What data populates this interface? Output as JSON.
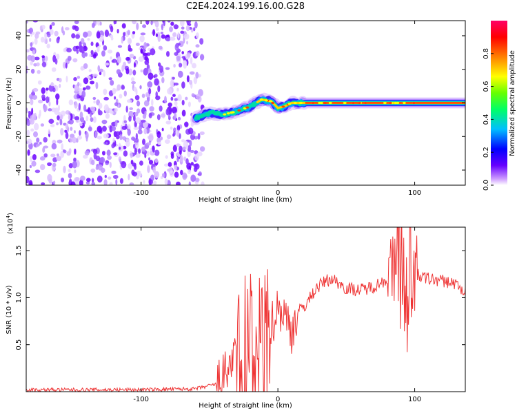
{
  "title": "C2E4.2024.199.16.00.G28",
  "chart_data": [
    {
      "type": "heatmap",
      "xlabel": "Height of straight line (km)",
      "ylabel": "Frequency (Hz)",
      "xlim": [
        -184,
        137
      ],
      "ylim": [
        -49,
        49
      ],
      "x_ticks": [
        "-100",
        "0",
        "100"
      ],
      "y_ticks": [
        "-40",
        "-20",
        "0",
        "20",
        "40"
      ],
      "colorbar": {
        "label": "Normalized spectral amplitude",
        "range": [
          0,
          1
        ],
        "ticks": [
          "0.0",
          "0.2",
          "0.4",
          "0.6",
          "0.8"
        ],
        "colors": [
          "#ffffff",
          "#cc99ff",
          "#6600ff",
          "#0000ff",
          "#00bfff",
          "#00ff66",
          "#66ff00",
          "#ffff00",
          "#ff8000",
          "#ff0000",
          "#ff0066"
        ]
      },
      "signal_trace": {
        "x": [
          -60,
          -50,
          -40,
          -30,
          -20,
          -12,
          -5,
          0,
          5,
          10,
          20,
          40,
          60,
          80,
          100,
          137
        ],
        "y": [
          -9,
          -6,
          -7,
          -5,
          -2,
          2,
          1,
          -3,
          -2,
          0,
          0,
          0,
          0,
          0,
          0,
          0
        ],
        "peak_amplitude_region": [
          20,
          137
        ]
      },
      "noise_region": [
        -184,
        -55
      ]
    },
    {
      "type": "line",
      "xlabel": "Height of straight line (km)",
      "ylabel": "SNR (10 * v/v)",
      "multiplier_label": "(x10",
      "multiplier_exp": "4",
      "multiplier_close": ")",
      "xlim": [
        -184,
        137
      ],
      "ylim": [
        0,
        1.75
      ],
      "x_ticks": [
        "-100",
        "0",
        "100"
      ],
      "y_ticks": [
        "0.5",
        "1.0",
        "1.5"
      ],
      "line_color": "#ee3333",
      "series": [
        {
          "x": [
            -184,
            -100,
            -60,
            -45,
            -38,
            -33,
            -28,
            -22,
            -16,
            -10,
            -5,
            0,
            5,
            10,
            15,
            20,
            28,
            35,
            40,
            45,
            50,
            60,
            70,
            80,
            85,
            90,
            95,
            100,
            105,
            110,
            120,
            130,
            137
          ],
          "y": [
            0.02,
            0.02,
            0.03,
            0.08,
            0.2,
            0.35,
            0.28,
            0.4,
            0.5,
            0.45,
            0.7,
            0.9,
            0.82,
            0.65,
            0.85,
            0.92,
            1.1,
            1.18,
            1.2,
            1.15,
            1.1,
            1.08,
            1.12,
            1.2,
            1.25,
            1.3,
            1.2,
            1.25,
            1.22,
            1.2,
            1.18,
            1.15,
            1.05
          ]
        }
      ],
      "spikes_x": [
        -28,
        -24,
        -18,
        -12,
        -8,
        88,
        90,
        92,
        94,
        96
      ]
    }
  ]
}
